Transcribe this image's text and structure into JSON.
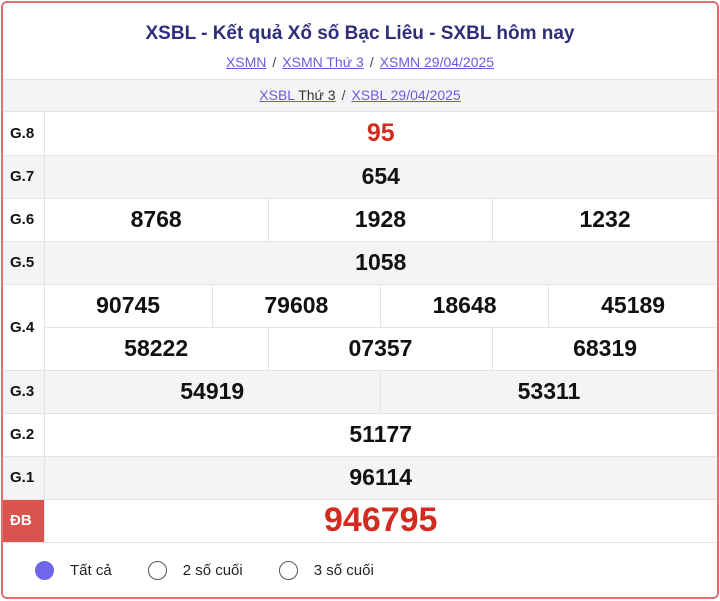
{
  "title": "XSBL - Kết quả Xổ số Bạc Liêu - SXBL hôm nay",
  "breadcrumb": [
    "XSMN",
    "XSMN Thứ 3",
    "XSMN 29/04/2025"
  ],
  "subnav": {
    "link1": "XSBL",
    "link1_suffix": "Thứ 3",
    "link2": "XSBL 29/04/2025"
  },
  "prizes": {
    "g8": {
      "label": "G.8",
      "values": [
        "95"
      ]
    },
    "g7": {
      "label": "G.7",
      "values": [
        "654"
      ]
    },
    "g6": {
      "label": "G.6",
      "values": [
        "8768",
        "1928",
        "1232"
      ]
    },
    "g5": {
      "label": "G.5",
      "values": [
        "1058"
      ]
    },
    "g4": {
      "label": "G.4",
      "values": [
        "90745",
        "79608",
        "18648",
        "45189",
        "58222",
        "07357",
        "68319"
      ]
    },
    "g3": {
      "label": "G.3",
      "values": [
        "54919",
        "53311"
      ]
    },
    "g2": {
      "label": "G.2",
      "values": [
        "51177"
      ]
    },
    "g1": {
      "label": "G.1",
      "values": [
        "96114"
      ]
    },
    "db": {
      "label": "ĐB",
      "values": [
        "946795"
      ]
    }
  },
  "filters": [
    {
      "label": "Tất cả",
      "selected": true
    },
    {
      "label": "2 số cuối",
      "selected": false
    },
    {
      "label": "3 số cuối",
      "selected": false
    }
  ],
  "colors": {
    "accent": "#d42a1f",
    "border": "#e07070",
    "radio": "#7066ea",
    "title": "#2d2f7a"
  }
}
